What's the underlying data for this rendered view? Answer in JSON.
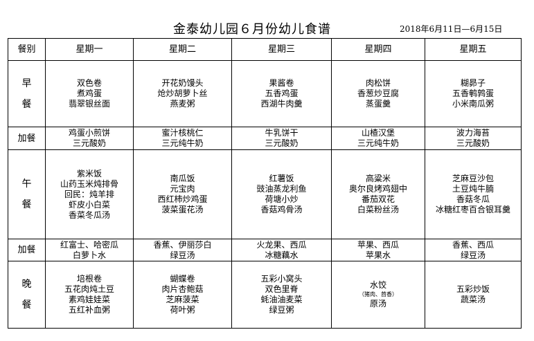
{
  "title": "金泰幼儿园６月份幼儿食谱",
  "date_range": "2018年6月11日—6月15日",
  "header": {
    "meal_label": "餐别",
    "days": [
      "星期一",
      "星期二",
      "星期三",
      "星期四",
      "星期五"
    ]
  },
  "rows": [
    {
      "meal": "早餐",
      "meal_lines": [
        "早",
        "餐"
      ],
      "cells": [
        [
          "双色卷",
          "煮鸡蛋",
          "翡翠银丝面"
        ],
        [
          "开花奶馒头",
          "炝炒胡萝卜丝",
          "燕麦粥"
        ],
        [
          "果酱卷",
          "五香鸡蛋",
          "西湖牛肉羹"
        ],
        [
          "肉松饼",
          "香葱炒豆腐",
          "蒸蛋羹"
        ],
        [
          "糊昴子",
          "五香鹌鹑蛋",
          "小米南瓜粥"
        ]
      ]
    },
    {
      "meal": "加餐",
      "meal_lines": [
        "加餐"
      ],
      "cells": [
        [
          "鸡蛋小煎饼",
          "三元酸奶"
        ],
        [
          "蜜汁核桃仁",
          "三元纯牛奶"
        ],
        [
          "牛乳饼干",
          "三元酸奶"
        ],
        [
          "山楂汉堡",
          "三元纯牛奶"
        ],
        [
          "波力海苔",
          "三元酸奶"
        ]
      ]
    },
    {
      "meal": "午餐",
      "meal_lines": [
        "午",
        "餐"
      ],
      "cells": [
        [
          "紫米饭",
          "山药玉米炖排骨",
          "回民：炖羊排",
          "虾皮小白菜",
          "香菜冬瓜汤"
        ],
        [
          "南瓜饭",
          "元宝肉",
          "西红柿炒鸡蛋",
          "菠菜蛋花汤"
        ],
        [
          "红薯饭",
          "豉油蒸龙利鱼",
          "荷塘小炒",
          "香菇鸡骨汤"
        ],
        [
          "高粱米",
          "奥尔良烤鸡翅中",
          "番茄双花",
          "白菜粉丝汤"
        ],
        [
          "芝麻豆沙包",
          "土豆炖牛腩",
          "香菇冬瓜",
          "冰糖红枣百合银耳羹"
        ]
      ]
    },
    {
      "meal": "加餐",
      "meal_lines": [
        "加餐"
      ],
      "cells": [
        [
          "红富士、哈密瓜",
          "白萝卜水"
        ],
        [
          "香蕉、伊丽莎白",
          "绿豆汤"
        ],
        [
          "火龙果、西瓜",
          "冰糖藕水"
        ],
        [
          "苹果、西瓜",
          "苹果水"
        ],
        [
          "香蕉、西瓜",
          "绿豆汤"
        ]
      ]
    },
    {
      "meal": "晚餐",
      "meal_lines": [
        "晚",
        "餐"
      ],
      "cells": [
        [
          "培根卷",
          "五花肉炖土豆",
          "素鸡娃娃菜",
          "五红补血粥"
        ],
        [
          "蝴蝶卷",
          "肉片杏鲍菇",
          "芝麻菠菜",
          "荷叶粥"
        ],
        [
          "五彩小窝头",
          "双色里脊",
          "蚝油油麦菜",
          "绿豆粥"
        ],
        [
          "水饺",
          "（猪肉、茴香）",
          "原汤"
        ],
        [
          "五彩炒饭",
          "蔬菜汤"
        ]
      ]
    }
  ]
}
